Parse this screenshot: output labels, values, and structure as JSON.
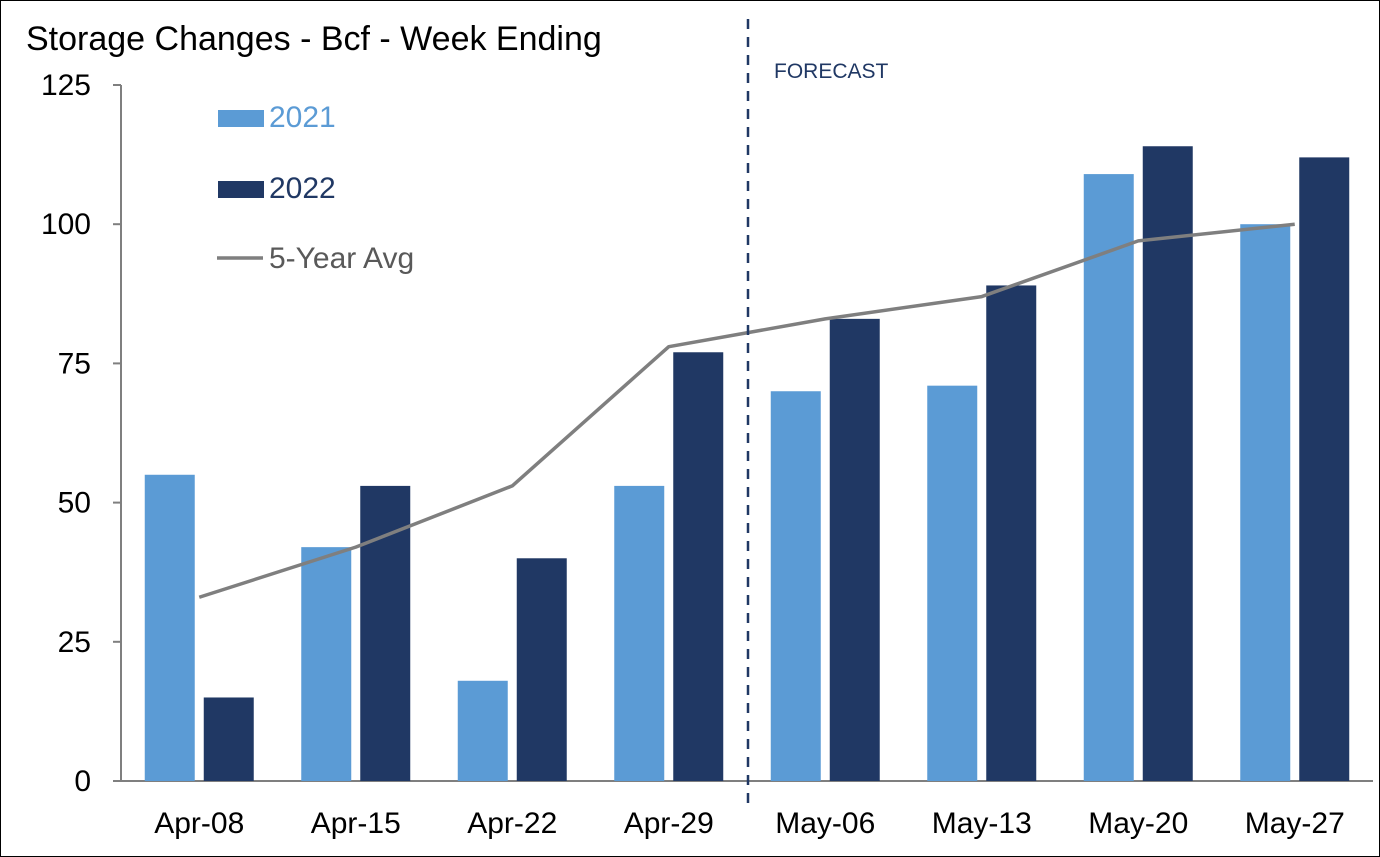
{
  "chart_data": {
    "type": "bar",
    "title": "Storage Changes - Bcf - Week Ending",
    "xlabel": "",
    "ylabel": "",
    "categories": [
      "Apr-08",
      "Apr-15",
      "Apr-22",
      "Apr-29",
      "May-06",
      "May-13",
      "May-20",
      "May-27"
    ],
    "ylim": [
      0,
      125
    ],
    "yticks": [
      0,
      25,
      50,
      75,
      100,
      125
    ],
    "series": [
      {
        "name": "2021",
        "type": "bar",
        "color": "#5b9bd5",
        "values": [
          55,
          42,
          18,
          53,
          70,
          71,
          109,
          100
        ]
      },
      {
        "name": "2022",
        "type": "bar",
        "color": "#203864",
        "values": [
          15,
          53,
          40,
          77,
          83,
          89,
          114,
          112
        ]
      },
      {
        "name": "5-Year Avg",
        "type": "line",
        "color": "#7f7f7f",
        "values": [
          33,
          42,
          53,
          78,
          83,
          87,
          97,
          100
        ]
      }
    ],
    "annotations": [
      {
        "text": "FORECAST",
        "position": "after Apr-29",
        "style": "dashed vertical divider",
        "color": "#203864"
      }
    ],
    "legend": {
      "placement": "top-left"
    },
    "grid": false
  }
}
